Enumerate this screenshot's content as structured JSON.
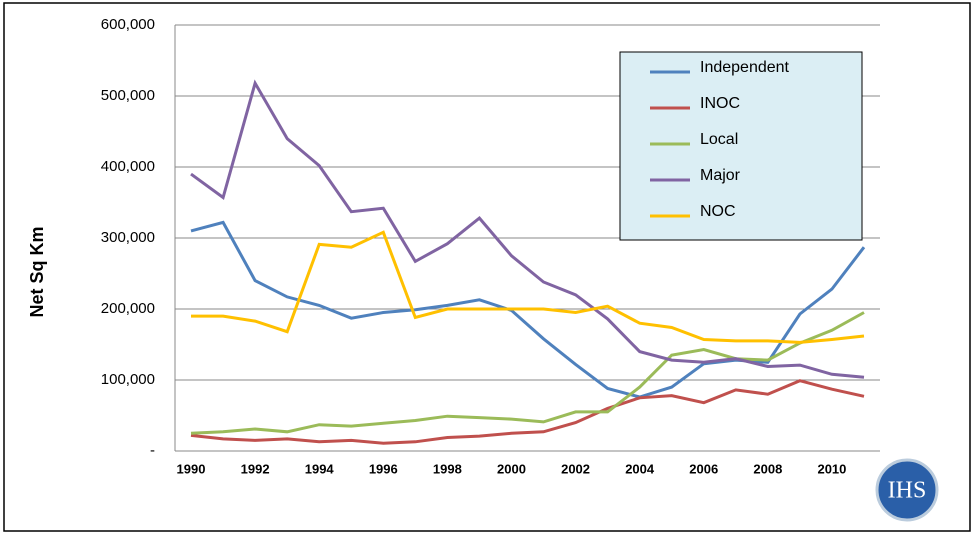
{
  "chart_data": {
    "type": "line",
    "y_label": "Net Sq Km",
    "logo": "IHS",
    "categories": [
      "1990",
      null,
      "1992",
      null,
      "1994",
      null,
      "1996",
      null,
      "1998",
      null,
      "2000",
      null,
      "2002",
      null,
      "2004",
      null,
      "2006",
      null,
      "2008",
      null,
      "2010",
      null
    ],
    "series": [
      {
        "name": "Independent",
        "color": "#4f81bd",
        "values": [
          310000,
          322000,
          240000,
          217000,
          205000,
          187000,
          195000,
          199000,
          205000,
          213000,
          198000,
          158000,
          122000,
          88000,
          76000,
          90000,
          123000,
          128000,
          125000,
          193000,
          228000,
          287000
        ]
      },
      {
        "name": "INOC",
        "color": "#c0504d",
        "values": [
          22000,
          17000,
          15000,
          17000,
          13000,
          15000,
          11000,
          13000,
          19000,
          21000,
          25000,
          27000,
          40000,
          60000,
          75000,
          78000,
          68000,
          86000,
          80000,
          99000,
          87000,
          77000
        ]
      },
      {
        "name": "Local",
        "color": "#9bbb59",
        "values": [
          25000,
          27000,
          31000,
          27000,
          37000,
          35000,
          39000,
          43000,
          49000,
          47000,
          45000,
          41000,
          55000,
          55000,
          90000,
          135000,
          143000,
          130000,
          128000,
          152000,
          170000,
          195000
        ]
      },
      {
        "name": "Major",
        "color": "#8064a2",
        "values": [
          390000,
          357000,
          518000,
          440000,
          402000,
          337000,
          342000,
          267000,
          292000,
          328000,
          275000,
          238000,
          220000,
          186000,
          140000,
          128000,
          125000,
          130000,
          119000,
          121000,
          108000,
          104000
        ]
      },
      {
        "name": "NOC",
        "color": "#ffc000",
        "values": [
          190000,
          190000,
          183000,
          168000,
          291000,
          287000,
          308000,
          188000,
          200000,
          200000,
          200000,
          200000,
          195000,
          204000,
          180000,
          174000,
          157000,
          155000,
          155000,
          153000,
          157000,
          162000
        ]
      }
    ],
    "ylim": [
      0,
      600000
    ],
    "yticks": [
      {
        "value": 0,
        "label": "-"
      },
      {
        "value": 100000,
        "label": "100,000"
      },
      {
        "value": 200000,
        "label": "200,000"
      },
      {
        "value": 300000,
        "label": "300,000"
      },
      {
        "value": 400000,
        "label": "400,000"
      },
      {
        "value": 500000,
        "label": "500,000"
      },
      {
        "value": 600000,
        "label": "600,000"
      }
    ],
    "grid": true,
    "legend": "upper right"
  }
}
